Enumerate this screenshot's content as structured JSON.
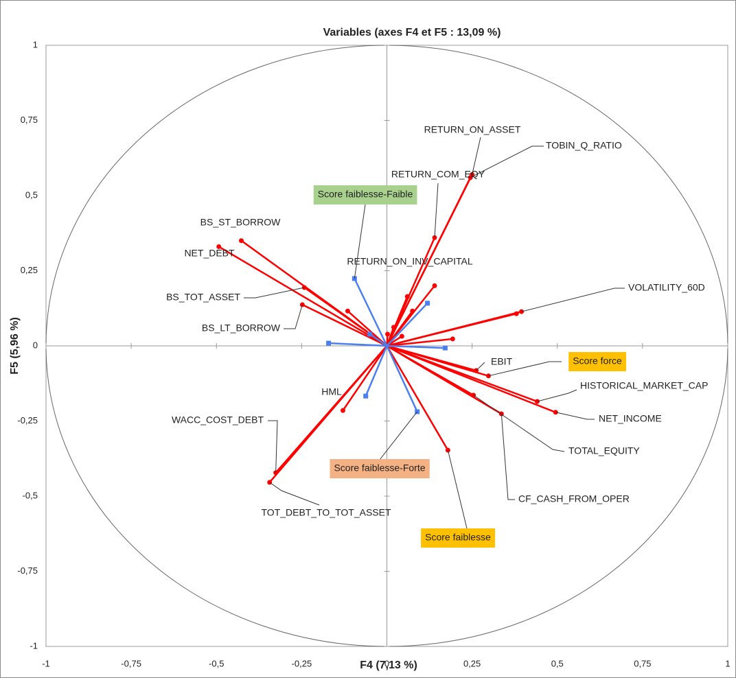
{
  "chart_data": {
    "type": "correlation-circle",
    "title": "Variables (axes F4 et F5 : 13,09 %)",
    "xlabel": "F4 (7,13 %)",
    "ylabel": "F5 (5,96 %)",
    "xlim": [
      -1,
      1
    ],
    "ylim": [
      -1,
      1
    ],
    "xticks": [
      -1,
      {
        "value": -0.75,
        "label": "-0,75"
      },
      {
        "value": -0.5,
        "label": "-0,5"
      },
      {
        "value": -0.25,
        "label": "-0,25"
      },
      0,
      {
        "value": 0.25,
        "label": "0,25"
      },
      {
        "value": 0.5,
        "label": "0,5"
      },
      {
        "value": 0.75,
        "label": "0,75"
      },
      1
    ],
    "yticks": [
      -1,
      {
        "value": -0.75,
        "label": "-0,75"
      },
      {
        "value": -0.5,
        "label": "-0,5"
      },
      {
        "value": -0.25,
        "label": "-0,25"
      },
      0,
      {
        "value": 0.25,
        "label": "0,25"
      },
      {
        "value": 0.5,
        "label": "0,5"
      },
      {
        "value": 0.75,
        "label": "0,75"
      },
      1
    ],
    "series": [
      {
        "color": "#ff0000",
        "labels": [
          "RETURN_ON_ASSET",
          "TOBIN_Q_RATIO",
          "RETURN_COM_EQY",
          "RETURN_ON_INV_CAPITAL",
          "VOLATILITY_60D",
          "BS_ST_BORROW",
          "NET_DEBT",
          "BS_TOT_ASSET",
          "BS_LT_BORROW",
          "EBIT",
          "Score force",
          "HISTORICAL_MARKET_CAP",
          "NET_INCOME",
          "TOTAL_EQUITY",
          "CF_CASH_FROM_OPER",
          "Score faiblesse",
          "HML",
          "WACC_COST_DEBT",
          "TOT_DEBT_TO_TOT_ASSET",
          null,
          null,
          null,
          null,
          null,
          null,
          null,
          null
        ],
        "x": [
          0.25,
          0.245,
          0.14,
          0.14,
          0.395,
          -0.427,
          -0.493,
          -0.242,
          -0.248,
          0.262,
          0.298,
          0.441,
          0.495,
          0.254,
          0.336,
          0.179,
          -0.129,
          -0.326,
          -0.344,
          -0.115,
          0.06,
          0.075,
          0.02,
          0.044,
          0.002,
          0.193,
          0.38
        ],
        "y": [
          0.57,
          0.56,
          0.36,
          0.2,
          0.114,
          0.35,
          0.33,
          0.194,
          0.137,
          -0.082,
          -0.1,
          -0.185,
          -0.221,
          -0.164,
          -0.226,
          -0.347,
          -0.215,
          -0.422,
          -0.454,
          0.116,
          0.164,
          0.116,
          0.062,
          0.032,
          0.039,
          0.023,
          0.107
        ]
      },
      {
        "color": "#4a7ff0",
        "labels": [
          "Score faiblesse-Faible",
          null,
          null,
          null,
          null,
          null,
          "Score faiblesse-Forte"
        ],
        "x": [
          -0.095,
          0.119,
          -0.05,
          -0.171,
          0.171,
          -0.062,
          0.089
        ],
        "y": [
          0.224,
          0.142,
          0.039,
          0.009,
          -0.007,
          -0.167,
          -0.219
        ]
      }
    ],
    "highlights": {
      "Score faiblesse-Faible": "#a9d18e",
      "Score faiblesse-Forte": "#f4b183",
      "Score force": "#ffc000",
      "Score faiblesse": "#ffc000"
    }
  }
}
